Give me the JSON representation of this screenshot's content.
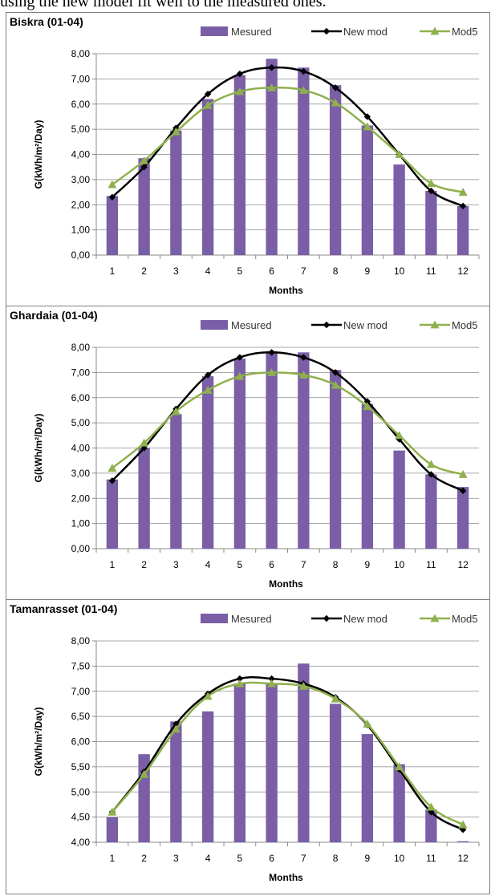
{
  "page": {
    "top_text": "using the new model fit well to the measured ones."
  },
  "colors": {
    "bar": "#7a5ea6",
    "new_mod": "#000000",
    "mod5": "#8fb04d",
    "grid": "#8a8a8a"
  },
  "chart_data": [
    {
      "type": "bar",
      "title": "Biskra (01-04)",
      "xlabel": "Months",
      "ylabel": "G(kWh/m²/Day)",
      "categories": [
        "1",
        "2",
        "3",
        "4",
        "5",
        "6",
        "7",
        "8",
        "9",
        "10",
        "11",
        "12"
      ],
      "ylim": [
        0,
        8
      ],
      "ystep": 1,
      "yticks": [
        "0,00",
        "1,00",
        "2,00",
        "3,00",
        "4,00",
        "5,00",
        "6,00",
        "7,00",
        "8,00"
      ],
      "grid": true,
      "legend": "top-right",
      "series": [
        {
          "name": "Mesured",
          "kind": "bar",
          "values": [
            2.35,
            3.85,
            4.95,
            6.2,
            7.15,
            7.8,
            7.45,
            6.75,
            5.15,
            3.6,
            2.55,
            1.95
          ]
        },
        {
          "name": "New mod",
          "kind": "line",
          "marker": "diamond",
          "values": [
            2.3,
            3.5,
            5.05,
            6.4,
            7.2,
            7.45,
            7.3,
            6.65,
            5.5,
            4.0,
            2.55,
            1.95
          ]
        },
        {
          "name": "Mod5",
          "kind": "line",
          "marker": "triangle",
          "values": [
            2.8,
            3.75,
            4.9,
            5.95,
            6.5,
            6.65,
            6.55,
            6.05,
            5.1,
            4.0,
            2.85,
            2.5
          ]
        }
      ]
    },
    {
      "type": "bar",
      "title": "Ghardaia (01-04)",
      "xlabel": "Months",
      "ylabel": "G(kWh/m²/Day)",
      "categories": [
        "1",
        "2",
        "3",
        "4",
        "5",
        "6",
        "7",
        "8",
        "9",
        "10",
        "11",
        "12"
      ],
      "ylim": [
        0,
        8
      ],
      "ystep": 1,
      "yticks": [
        "0,00",
        "1,00",
        "2,00",
        "3,00",
        "4,00",
        "5,00",
        "6,00",
        "7,00",
        "8,00"
      ],
      "grid": true,
      "legend": "top-right",
      "series": [
        {
          "name": "Mesured",
          "kind": "bar",
          "values": [
            2.75,
            4.0,
            5.35,
            6.85,
            7.55,
            7.85,
            7.8,
            7.1,
            5.75,
            3.9,
            2.95,
            2.45
          ]
        },
        {
          "name": "New mod",
          "kind": "line",
          "marker": "diamond",
          "values": [
            2.7,
            4.0,
            5.55,
            6.9,
            7.6,
            7.8,
            7.6,
            7.0,
            5.85,
            4.35,
            2.95,
            2.3
          ]
        },
        {
          "name": "Mod5",
          "kind": "line",
          "marker": "triangle",
          "values": [
            3.2,
            4.2,
            5.45,
            6.3,
            6.85,
            7.0,
            6.9,
            6.5,
            5.65,
            4.5,
            3.35,
            2.95
          ]
        }
      ]
    },
    {
      "type": "bar",
      "title": "Tamanrasset (01-04)",
      "xlabel": "Months",
      "ylabel": "G(kWh/m²/Day)",
      "categories": [
        "1",
        "2",
        "3",
        "4",
        "5",
        "6",
        "7",
        "8",
        "9",
        "10",
        "11",
        "12"
      ],
      "ylim": [
        4,
        8
      ],
      "ystep": 0.5,
      "yticks": [
        "4,00",
        "4,50",
        "5,00",
        "5,50",
        "6,00",
        "6,50",
        "7,00",
        "7,50",
        "8,00"
      ],
      "grid": true,
      "legend": "top-right",
      "series": [
        {
          "name": "Mesured",
          "kind": "bar",
          "values": [
            4.5,
            5.75,
            6.4,
            6.6,
            7.15,
            7.15,
            7.55,
            6.75,
            6.15,
            5.55,
            4.65,
            4.02
          ]
        },
        {
          "name": "New mod",
          "kind": "line",
          "marker": "diamond",
          "values": [
            4.6,
            5.4,
            6.35,
            6.95,
            7.25,
            7.25,
            7.15,
            6.88,
            6.33,
            5.45,
            4.6,
            4.25
          ]
        },
        {
          "name": "Mod5",
          "kind": "line",
          "marker": "triangle",
          "values": [
            4.6,
            5.35,
            6.25,
            6.9,
            7.15,
            7.15,
            7.1,
            6.85,
            6.35,
            5.5,
            4.7,
            4.35
          ]
        }
      ]
    }
  ]
}
